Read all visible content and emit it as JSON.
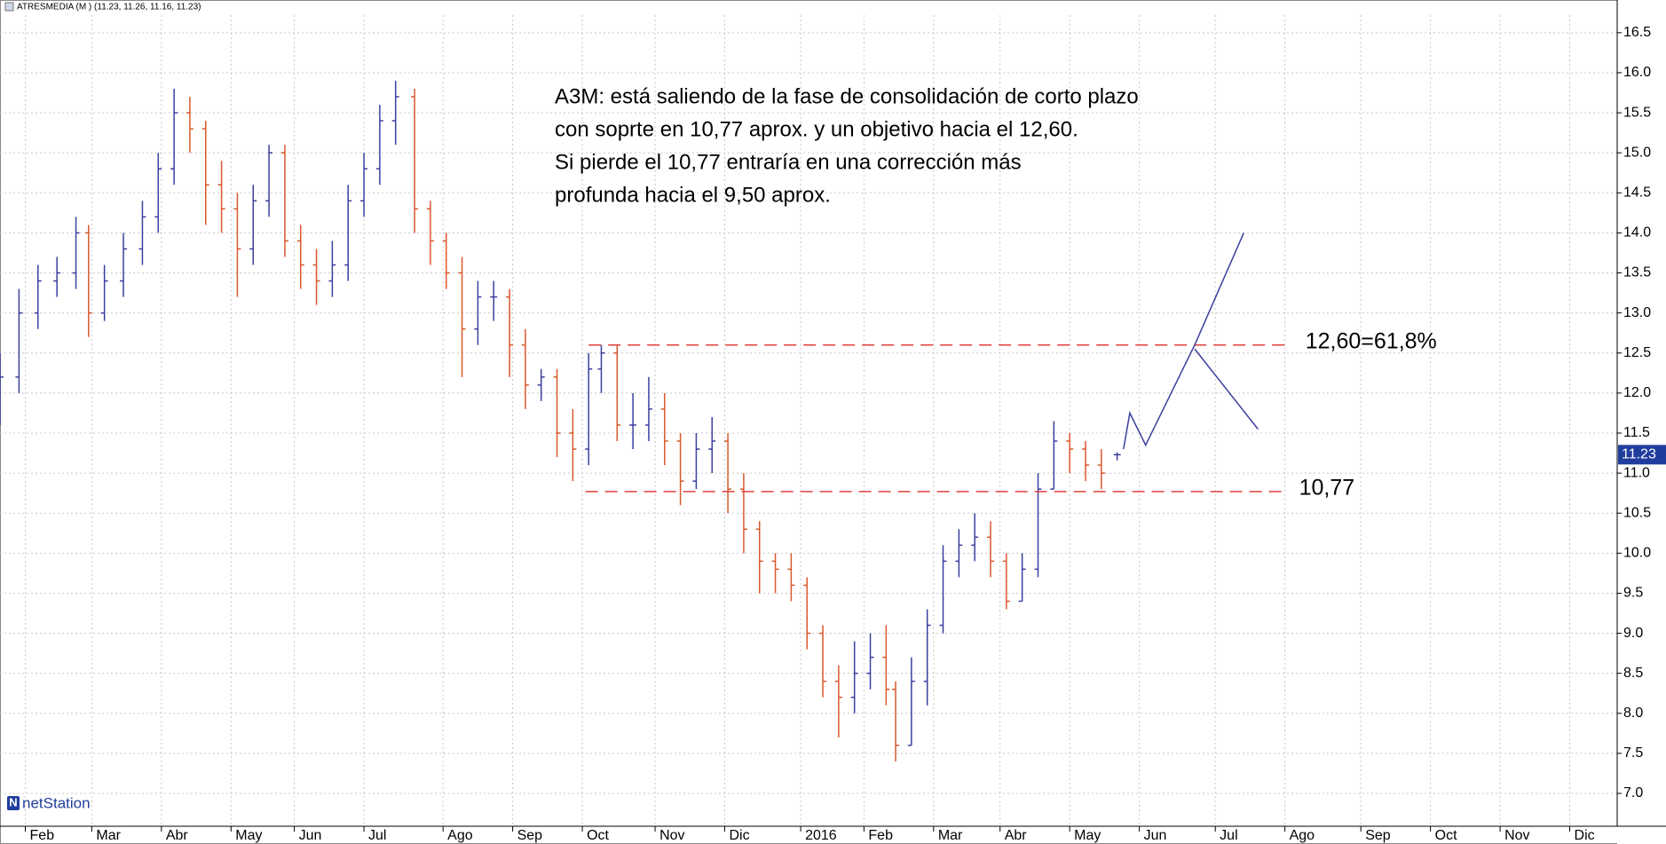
{
  "chart_data": {
    "type": "ohlc",
    "header": "ATRESMEDIA (M ) (11.23, 11.26, 11.16, 11.23)",
    "annotation": [
      "A3M: está saliendo de la fase de consolidación de corto plazo",
      "con soprte en 10,77 aprox. y un objetivo hacia el 12,60.",
      "Si pierde el 10,77 entraría en una corrección más",
      "profunda hacia el 9,50 aprox."
    ],
    "brand": "netStation",
    "xlim": [
      0,
      511
    ],
    "ylim": [
      6.59,
      16.72
    ],
    "grid": true,
    "up_color": "#3b3f9e",
    "down_color": "#d9582c",
    "xticks": [
      {
        "value": 8,
        "label": "Feb"
      },
      {
        "value": 29,
        "label": "Mar"
      },
      {
        "value": 51,
        "label": "Abr"
      },
      {
        "value": 73,
        "label": "May"
      },
      {
        "value": 93,
        "label": "Jun"
      },
      {
        "value": 115,
        "label": "Jul"
      },
      {
        "value": 140,
        "label": "Ago"
      },
      {
        "value": 162,
        "label": "Sep"
      },
      {
        "value": 184,
        "label": "Oct"
      },
      {
        "value": 207,
        "label": "Nov"
      },
      {
        "value": 229,
        "label": "Dic"
      },
      {
        "value": 253,
        "label": "2016"
      },
      {
        "value": 273,
        "label": "Feb"
      },
      {
        "value": 295,
        "label": "Mar"
      },
      {
        "value": 316,
        "label": "Abr"
      },
      {
        "value": 338,
        "label": "May"
      },
      {
        "value": 360,
        "label": "Jun"
      },
      {
        "value": 384,
        "label": "Jul"
      },
      {
        "value": 406,
        "label": "Ago"
      },
      {
        "value": 430,
        "label": "Sep"
      },
      {
        "value": 452,
        "label": "Oct"
      },
      {
        "value": 474,
        "label": "Nov"
      },
      {
        "value": 496,
        "label": "Dic"
      }
    ],
    "yticks": [
      {
        "value": 7,
        "label": "7.0"
      },
      7.5,
      {
        "value": 8,
        "label": "8.0"
      },
      8.5,
      {
        "value": 9,
        "label": "9.0"
      },
      9.5,
      {
        "value": 10,
        "label": "10.0"
      },
      10.5,
      {
        "value": 11,
        "label": "11.0"
      },
      11.5,
      {
        "value": 12,
        "label": "12.0"
      },
      12.5,
      {
        "value": 13,
        "label": "13.0"
      },
      13.5,
      {
        "value": 14,
        "label": "14.0"
      },
      14.5,
      {
        "value": 15,
        "label": "15.0"
      },
      15.5,
      {
        "value": 16,
        "label": "16.0"
      },
      16.5
    ],
    "x": [
      0,
      6,
      12,
      18,
      24,
      28,
      33,
      39,
      45,
      50,
      55,
      60,
      65,
      70,
      75,
      80,
      85,
      90,
      95,
      100,
      105,
      110,
      115,
      120,
      125,
      131,
      136,
      141,
      146,
      151,
      156,
      161,
      166,
      171,
      176,
      181,
      186,
      190,
      195,
      200,
      205,
      210,
      215,
      220,
      225,
      230,
      235,
      240,
      245,
      250,
      255,
      260,
      265,
      270,
      275,
      280,
      283,
      288,
      293,
      298,
      303,
      308,
      313,
      318,
      323,
      328,
      333,
      338,
      343,
      348,
      353
    ],
    "open": [
      11.9,
      12.2,
      13.0,
      13.4,
      13.5,
      14.0,
      13.0,
      13.4,
      13.8,
      14.2,
      14.8,
      15.5,
      15.3,
      14.6,
      14.3,
      13.8,
      14.4,
      15.0,
      13.9,
      13.6,
      13.4,
      13.6,
      14.4,
      14.8,
      15.4,
      15.7,
      14.3,
      13.9,
      13.5,
      12.8,
      13.2,
      13.2,
      12.6,
      12.1,
      12.2,
      11.5,
      11.3,
      12.3,
      12.5,
      11.6,
      11.6,
      11.8,
      11.4,
      10.9,
      11.3,
      11.4,
      10.8,
      10.3,
      9.9,
      9.8,
      9.6,
      9.0,
      8.4,
      8.2,
      8.5,
      8.7,
      8.3,
      7.6,
      8.4,
      9.1,
      9.9,
      10.1,
      10.2,
      9.9,
      9.4,
      9.8,
      10.8,
      11.4,
      11.3,
      11.1,
      11.23
    ],
    "high": [
      12.5,
      13.3,
      13.6,
      13.7,
      14.2,
      14.1,
      13.6,
      14.0,
      14.4,
      15.0,
      15.8,
      15.7,
      15.4,
      14.9,
      14.5,
      14.6,
      15.1,
      15.1,
      14.1,
      13.8,
      13.9,
      14.6,
      15.0,
      15.6,
      15.9,
      15.8,
      14.4,
      14.0,
      13.7,
      13.4,
      13.4,
      13.3,
      12.8,
      12.3,
      12.3,
      11.8,
      12.5,
      12.6,
      12.6,
      12.0,
      12.2,
      12.0,
      11.5,
      11.5,
      11.7,
      11.5,
      11.0,
      10.4,
      10.0,
      10.0,
      9.7,
      9.1,
      8.6,
      8.9,
      9.0,
      9.1,
      8.4,
      8.7,
      9.3,
      10.1,
      10.3,
      10.5,
      10.4,
      10.0,
      10.0,
      11.0,
      11.65,
      11.5,
      11.4,
      11.3,
      11.26
    ],
    "low": [
      11.6,
      12.0,
      12.8,
      13.2,
      13.3,
      12.7,
      12.9,
      13.2,
      13.6,
      14.0,
      14.6,
      15.0,
      14.1,
      14.0,
      13.2,
      13.6,
      14.2,
      13.7,
      13.3,
      13.1,
      13.2,
      13.4,
      14.2,
      14.6,
      15.1,
      14.0,
      13.6,
      13.3,
      12.2,
      12.6,
      12.9,
      12.2,
      11.8,
      11.9,
      11.2,
      10.9,
      11.1,
      12.0,
      11.4,
      11.3,
      11.4,
      11.1,
      10.6,
      10.8,
      11.0,
      10.5,
      10.0,
      9.5,
      9.5,
      9.4,
      8.8,
      8.2,
      7.7,
      8.0,
      8.3,
      8.1,
      7.4,
      7.6,
      8.1,
      9.0,
      9.7,
      9.9,
      9.7,
      9.3,
      9.4,
      9.7,
      10.8,
      11.0,
      10.9,
      10.8,
      11.16
    ],
    "close": [
      12.2,
      13.0,
      13.4,
      13.5,
      14.0,
      13.0,
      13.4,
      13.8,
      14.2,
      14.8,
      15.5,
      15.3,
      14.6,
      14.3,
      13.8,
      14.4,
      15.0,
      13.9,
      13.6,
      13.4,
      13.6,
      14.4,
      14.8,
      15.4,
      15.7,
      14.3,
      13.9,
      13.5,
      12.8,
      13.2,
      13.2,
      12.6,
      12.1,
      12.2,
      11.5,
      11.3,
      12.3,
      12.5,
      11.6,
      11.6,
      11.8,
      11.4,
      10.9,
      11.3,
      11.4,
      10.8,
      10.3,
      9.9,
      9.8,
      9.6,
      9.0,
      8.4,
      8.2,
      8.5,
      8.7,
      8.3,
      7.6,
      8.4,
      9.1,
      9.9,
      10.1,
      10.2,
      9.9,
      9.4,
      9.8,
      10.8,
      11.4,
      11.3,
      11.1,
      11.0,
      11.23
    ],
    "last_price": 11.23,
    "last_color": "#1f3d9c",
    "levels": [
      {
        "y": 12.6,
        "x": [
          186,
          408
        ],
        "label": "12,60=61,8%",
        "color": "#e0403c"
      },
      {
        "y": 10.77,
        "x": [
          185,
          406
        ],
        "label": "10,77",
        "color": "#e0403c"
      }
    ],
    "projections": [
      {
        "x": [
          355,
          357,
          362,
          377.5,
          393
        ],
        "y": [
          11.3,
          11.75,
          11.35,
          12.6,
          14.0
        ],
        "color": "#3b3f9e"
      },
      {
        "x": [
          377.5,
          397.5
        ],
        "y": [
          12.55,
          11.55
        ],
        "color": "#3b3f9e"
      }
    ]
  }
}
